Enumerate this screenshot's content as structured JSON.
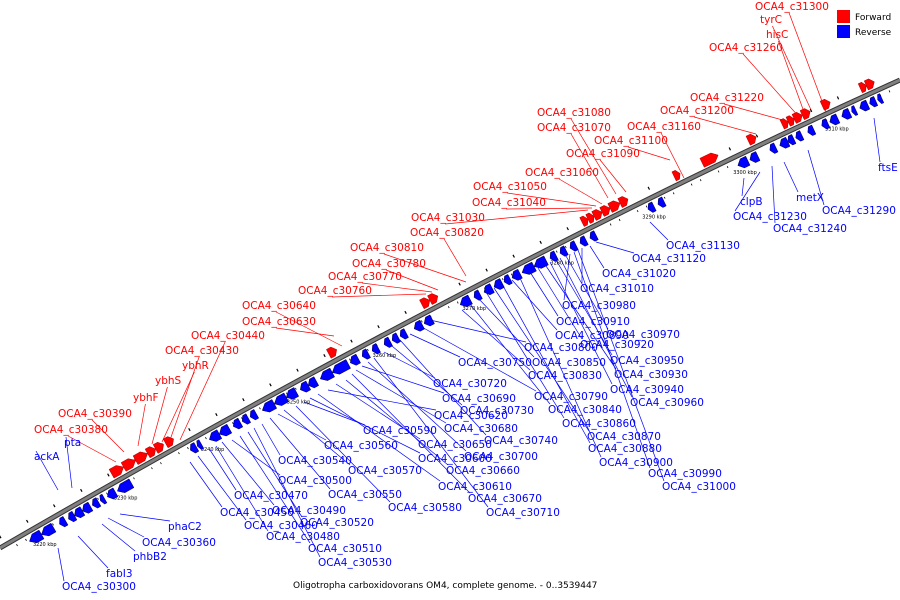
{
  "caption": "Oligotropha carboxidovorans OM4, complete genome. - 0..3539447",
  "legend": [
    {
      "name": "Forward",
      "color": "#ff0000"
    },
    {
      "name": "Reverse",
      "color": "#0000ff"
    }
  ],
  "colors": {
    "forward": "#ff0000",
    "reverse": "#0000ff",
    "backbone": "#808080",
    "leader_forward": "#ff0000",
    "leader_reverse": "#0000ff"
  },
  "ticks": [
    "3220 kbp",
    "3230 kbp",
    "3240 kbp",
    "3250 kbp",
    "3260 kbp",
    "3270 kbp",
    "3280 kbp",
    "3290 kbp",
    "3300 kbp",
    "3310 kbp"
  ],
  "forward_labels": [
    "OCA4_c31300",
    "tyrC",
    "hisC",
    "OCA4_c31260",
    "OCA4_c31220",
    "OCA4_c31200",
    "OCA4_c31160",
    "OCA4_c31100",
    "OCA4_c31090",
    "OCA4_c31080",
    "OCA4_c31070",
    "OCA4_c31060",
    "OCA4_c31050",
    "OCA4_c31040",
    "OCA4_c31030",
    "OCA4_c30820",
    "OCA4_c30810",
    "OCA4_c30780",
    "OCA4_c30770",
    "OCA4_c30760",
    "OCA4_c30640",
    "OCA4_c30630",
    "OCA4_c30440",
    "OCA4_c30430",
    "ybhR",
    "ybhS",
    "ybhF",
    "OCA4_c30390",
    "OCA4_c30380"
  ],
  "reverse_labels": [
    "ackA",
    "pta",
    "phaC2",
    "OCA4_c30360",
    "phbB2",
    "fabI3",
    "OCA4_c30300",
    "OCA4_c30450",
    "OCA4_c30460",
    "OCA4_c30470",
    "OCA4_c30480",
    "OCA4_c30490",
    "OCA4_c30500",
    "OCA4_c30510",
    "OCA4_c30520",
    "OCA4_c30530",
    "OCA4_c30540",
    "OCA4_c30550",
    "OCA4_c30560",
    "OCA4_c30570",
    "OCA4_c30580",
    "OCA4_c30590",
    "OCA4_c30600",
    "OCA4_c30610",
    "OCA4_c30620",
    "OCA4_c30650",
    "OCA4_c30660",
    "OCA4_c30670",
    "OCA4_c30680",
    "OCA4_c30690",
    "OCA4_c30700",
    "OCA4_c30710",
    "OCA4_c30720",
    "OCA4_c30730",
    "OCA4_c30740",
    "OCA4_c30750",
    "OCA4_c30790",
    "OCA4_c30800",
    "OCA4_c30830",
    "OCA4_c30840",
    "OCA4_c30850",
    "OCA4_c30860",
    "OCA4_c30870",
    "OCA4_c30880",
    "OCA4_c30890",
    "OCA4_c30900",
    "OCA4_c30910",
    "OCA4_c30920",
    "OCA4_c30930",
    "OCA4_c30940",
    "OCA4_c30950",
    "OCA4_c30960",
    "OCA4_c30970",
    "OCA4_c30980",
    "OCA4_c30990",
    "OCA4_c31000",
    "OCA4_c31010",
    "OCA4_c31020",
    "OCA4_c31120",
    "OCA4_c31130",
    "clpB",
    "OCA4_c31230",
    "OCA4_c31240",
    "metX",
    "OCA4_c31290",
    "ftsE"
  ]
}
